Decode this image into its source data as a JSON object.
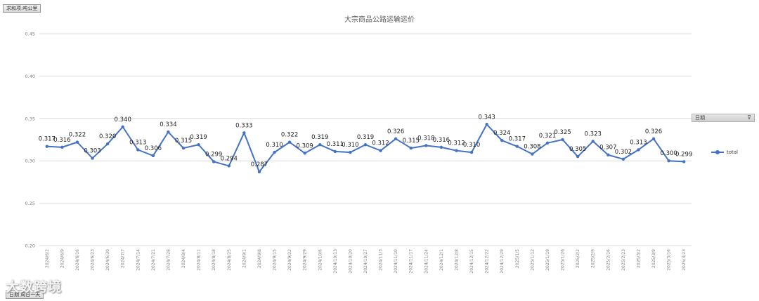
{
  "field_buttons": {
    "top": "求和项:吨公里",
    "bottom": "日期 周日一天"
  },
  "legend_header": "日期",
  "watermark": "大数跨境",
  "colors": {
    "series": "#4472c4",
    "grid": "#d9d9d9",
    "axis_text": "#7f7f7f",
    "title": "#595959"
  },
  "chart_data": {
    "type": "line",
    "title": "大宗商品公路运输运价",
    "ylim": [
      0.2,
      0.45
    ],
    "yticks": [
      "0.20",
      "0.25",
      "0.30",
      "0.35",
      "0.40",
      "0.45"
    ],
    "grid": true,
    "legend_placement": "right",
    "categories": [
      "2024/6/2",
      "2024/6/9",
      "2024/6/16",
      "2024/6/23",
      "2024/6/30",
      "2024/7/7",
      "2024/7/14",
      "2024/7/21",
      "2024/7/28",
      "2024/8/4",
      "2024/8/11",
      "2024/8/18",
      "2024/8/25",
      "2024/9/1",
      "2024/9/8",
      "2024/9/15",
      "2024/9/22",
      "2024/9/29",
      "2024/10/6",
      "2024/10/13",
      "2024/10/20",
      "2024/10/27",
      "2024/11/3",
      "2024/11/10",
      "2024/11/17",
      "2024/11/24",
      "2024/12/1",
      "2024/12/8",
      "2024/12/15",
      "2024/12/22",
      "2024/12/29",
      "2025/1/5",
      "2025/1/12",
      "2025/1/19",
      "2025/1/26",
      "2025/2/2",
      "2025/2/9",
      "2025/2/16",
      "2025/2/23",
      "2025/3/2",
      "2025/3/9",
      "2025/3/16",
      "2025/3/23"
    ],
    "series": [
      {
        "name": "total",
        "values": [
          0.317,
          0.316,
          0.322,
          0.303,
          0.32,
          0.34,
          0.313,
          0.306,
          0.334,
          0.315,
          0.319,
          0.299,
          0.294,
          0.333,
          0.287,
          0.31,
          0.322,
          0.309,
          0.319,
          0.311,
          0.31,
          0.319,
          0.312,
          0.326,
          0.315,
          0.318,
          0.316,
          0.312,
          0.31,
          0.343,
          0.324,
          0.317,
          0.308,
          0.321,
          0.325,
          0.305,
          0.323,
          0.307,
          0.302,
          0.313,
          0.326,
          0.3,
          0.299
        ]
      }
    ]
  }
}
